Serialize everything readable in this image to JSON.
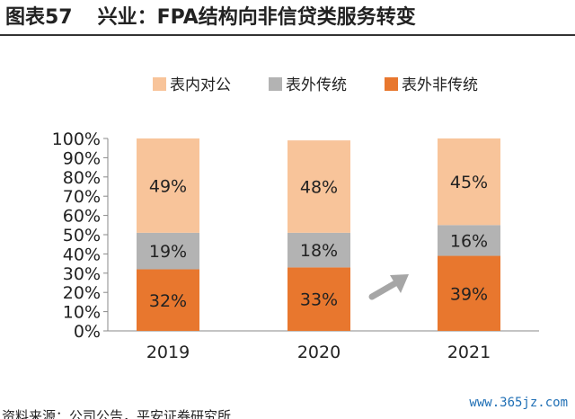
{
  "header": {
    "figure_number": "图表57",
    "title": "兴业：FPA结构向非信贷类服务转变"
  },
  "source_note": "资料来源：公司公告，平安证券研究所",
  "watermark": "www.365jz.com",
  "colors": {
    "on_balance": "#f8c49a",
    "off_traditional": "#b3b3b3",
    "off_nontraditional": "#e8772e",
    "arrow": "#a6a6a6"
  },
  "chart_data": {
    "type": "bar",
    "stacked": true,
    "categories": [
      "2019",
      "2020",
      "2021"
    ],
    "series": [
      {
        "name": "表外非传统",
        "values": [
          32,
          33,
          39
        ]
      },
      {
        "name": "表外传统",
        "values": [
          19,
          18,
          16
        ]
      },
      {
        "name": "表内对公",
        "values": [
          49,
          48,
          45
        ]
      }
    ],
    "data_labels": [
      [
        "32%",
        "33%",
        "39%"
      ],
      [
        "19%",
        "18%",
        "16%"
      ],
      [
        "49%",
        "48%",
        "45%"
      ]
    ],
    "y_ticks": [
      "0%",
      "10%",
      "20%",
      "30%",
      "40%",
      "50%",
      "60%",
      "70%",
      "80%",
      "90%",
      "100%"
    ],
    "ylim": [
      0,
      100
    ],
    "legend_order": [
      "表内对公",
      "表外传统",
      "表外非传统"
    ],
    "legend_position": "top",
    "grid": false,
    "annotation": "arrow pointing up-right toward 2021 bar"
  }
}
